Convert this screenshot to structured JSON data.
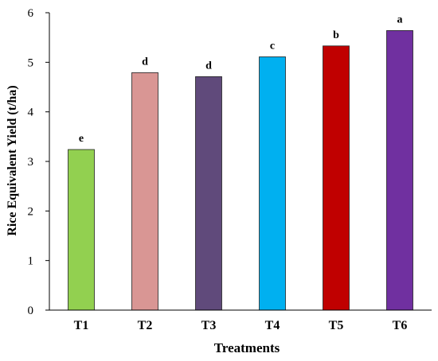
{
  "chart_data": {
    "type": "bar",
    "xlabel": "Treatments",
    "ylabel": "Rice Equivalent Yield (t/ha)",
    "categories": [
      "T1",
      "T2",
      "T3",
      "T4",
      "T5",
      "T6"
    ],
    "values": [
      3.24,
      4.79,
      4.71,
      5.11,
      5.33,
      5.64
    ],
    "significance_letters": [
      "e",
      "d",
      "d",
      "c",
      "b",
      "a"
    ],
    "colors": [
      "#92d050",
      "#d99694",
      "#604a7b",
      "#00b0f0",
      "#c00000",
      "#7030a0"
    ],
    "ylim": [
      0,
      6
    ],
    "yticks": [
      "0",
      "1",
      "2",
      "3",
      "4",
      "5",
      "6"
    ],
    "grid": false,
    "legend": "none"
  }
}
